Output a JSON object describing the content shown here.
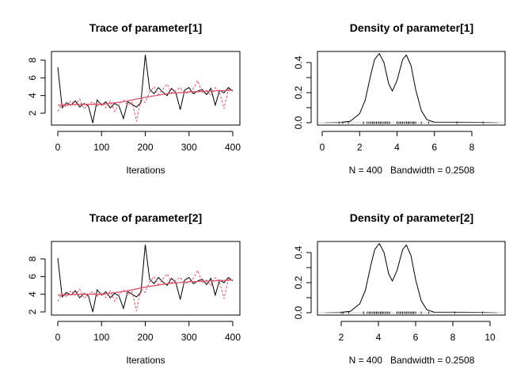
{
  "chart_data": [
    {
      "type": "line",
      "title": "Trace of parameter[1]",
      "xlabel": "Iterations",
      "xlim": [
        0,
        400
      ],
      "xticks": [
        0,
        100,
        200,
        300,
        400
      ],
      "yticks": [
        2,
        4,
        6,
        8
      ],
      "x": [
        0,
        10,
        20,
        30,
        40,
        50,
        60,
        70,
        80,
        90,
        100,
        110,
        120,
        130,
        140,
        150,
        160,
        170,
        180,
        190,
        200,
        210,
        220,
        230,
        240,
        250,
        260,
        270,
        280,
        290,
        300,
        310,
        320,
        330,
        340,
        350,
        360,
        370,
        380,
        390,
        400
      ],
      "series": [
        {
          "color": "#000000",
          "style": "solid",
          "values": [
            7.2,
            2.6,
            3.2,
            2.9,
            3.4,
            2.7,
            3.1,
            2.8,
            0.9,
            3.5,
            2.9,
            3.3,
            2.6,
            3.1,
            2.8,
            1.4,
            3.3,
            3.0,
            2.7,
            3.2,
            8.6,
            4.7,
            4.2,
            4.9,
            4.4,
            4.0,
            4.8,
            4.3,
            2.4,
            4.6,
            4.9,
            4.2,
            4.5,
            4.7,
            4.1,
            4.8,
            2.9,
            4.6,
            4.3,
            4.9,
            4.5
          ]
        },
        {
          "color": "#DF536B",
          "style": "dashed",
          "values": [
            2.2,
            3.1,
            2.7,
            3.4,
            2.9,
            3.6,
            2.5,
            3.0,
            3.3,
            2.8,
            3.2,
            2.6,
            3.4,
            2.2,
            3.0,
            3.5,
            2.9,
            3.3,
            1.1,
            3.6,
            3.2,
            4.4,
            5.0,
            4.1,
            4.7,
            5.3,
            4.3,
            4.6,
            4.9,
            4.2,
            4.4,
            4.8,
            5.7,
            4.3,
            4.6,
            4.0,
            4.9,
            4.4,
            2.5,
            4.7,
            4.6
          ]
        }
      ],
      "smooth": {
        "color": "#DF536B",
        "x": [
          0,
          50,
          100,
          150,
          200,
          250,
          300,
          350,
          400
        ],
        "values": [
          2.9,
          3.0,
          3.0,
          3.3,
          3.8,
          4.2,
          4.4,
          4.5,
          4.6
        ]
      }
    },
    {
      "type": "line",
      "title": "Density of parameter[1]",
      "xlabel": "N = 400   Bandwidth = 0.2508",
      "xticks": [
        0,
        2,
        4,
        6,
        8
      ],
      "yticks": [
        0.0,
        0.1,
        0.2,
        0.3,
        0.4
      ],
      "ytick_labels": [
        "0.0",
        "",
        "0.2",
        "",
        "0.4"
      ],
      "x": [
        0.15,
        1,
        1.5,
        2,
        2.3,
        2.6,
        2.8,
        3.05,
        3.3,
        3.55,
        3.75,
        4.0,
        4.3,
        4.5,
        4.75,
        5.0,
        5.3,
        5.6,
        6,
        7.2,
        8.6,
        9.4
      ],
      "y": [
        0,
        0.002,
        0.01,
        0.06,
        0.15,
        0.32,
        0.42,
        0.46,
        0.4,
        0.26,
        0.21,
        0.28,
        0.42,
        0.45,
        0.38,
        0.22,
        0.08,
        0.02,
        0.003,
        0.003,
        0.002,
        0
      ],
      "rug": "trace samples"
    },
    {
      "type": "line",
      "title": "Trace of parameter[2]",
      "xlabel": "Iterations",
      "xlim": [
        0,
        400
      ],
      "xticks": [
        0,
        100,
        200,
        300,
        400
      ],
      "yticks": [
        2,
        4,
        6,
        8
      ],
      "x": [
        0,
        10,
        20,
        30,
        40,
        50,
        60,
        70,
        80,
        90,
        100,
        110,
        120,
        130,
        140,
        150,
        160,
        170,
        180,
        190,
        200,
        210,
        220,
        230,
        240,
        250,
        260,
        270,
        280,
        290,
        300,
        310,
        320,
        330,
        340,
        350,
        360,
        370,
        380,
        390,
        400
      ],
      "series": [
        {
          "color": "#000000",
          "style": "solid",
          "values": [
            8.1,
            3.7,
            4.2,
            3.9,
            4.4,
            3.6,
            4.1,
            3.8,
            2.0,
            4.5,
            3.9,
            4.3,
            3.6,
            4.1,
            3.8,
            2.4,
            4.3,
            4.0,
            3.7,
            4.2,
            9.6,
            5.7,
            5.2,
            5.9,
            5.4,
            5.0,
            5.8,
            5.3,
            3.4,
            5.6,
            5.9,
            5.2,
            5.5,
            5.7,
            5.1,
            5.8,
            3.9,
            5.6,
            5.3,
            5.9,
            5.5
          ]
        },
        {
          "color": "#DF536B",
          "style": "dashed",
          "values": [
            3.2,
            4.1,
            3.7,
            4.4,
            3.9,
            4.6,
            3.5,
            4.0,
            4.3,
            3.8,
            4.2,
            3.6,
            4.4,
            3.2,
            4.0,
            4.5,
            3.9,
            4.3,
            2.1,
            4.6,
            4.2,
            5.4,
            6.0,
            5.1,
            5.7,
            6.3,
            5.3,
            5.6,
            5.9,
            5.2,
            5.4,
            5.8,
            6.7,
            5.3,
            5.6,
            5.0,
            5.9,
            5.4,
            3.5,
            5.7,
            5.6
          ]
        }
      ],
      "smooth": {
        "color": "#DF536B",
        "x": [
          0,
          50,
          100,
          150,
          200,
          250,
          300,
          350,
          400
        ],
        "values": [
          3.9,
          4.0,
          4.0,
          4.3,
          4.8,
          5.2,
          5.4,
          5.5,
          5.6
        ]
      }
    },
    {
      "type": "line",
      "title": "Density of parameter[2]",
      "xlabel": "N = 400   Bandwidth = 0.2508",
      "xticks": [
        2,
        4,
        6,
        8,
        10
      ],
      "yticks": [
        0.0,
        0.1,
        0.2,
        0.3,
        0.4
      ],
      "ytick_labels": [
        "0.0",
        "",
        "0.2",
        "",
        "0.4"
      ],
      "x": [
        1.15,
        2,
        2.5,
        3,
        3.3,
        3.6,
        3.8,
        4.05,
        4.3,
        4.55,
        4.75,
        5.0,
        5.3,
        5.5,
        5.75,
        6.0,
        6.3,
        6.6,
        7,
        8.2,
        9.6,
        10.4
      ],
      "y": [
        0,
        0.002,
        0.01,
        0.06,
        0.15,
        0.32,
        0.42,
        0.46,
        0.4,
        0.26,
        0.21,
        0.28,
        0.42,
        0.45,
        0.38,
        0.22,
        0.08,
        0.02,
        0.003,
        0.003,
        0.002,
        0
      ],
      "rug": "trace samples"
    }
  ]
}
